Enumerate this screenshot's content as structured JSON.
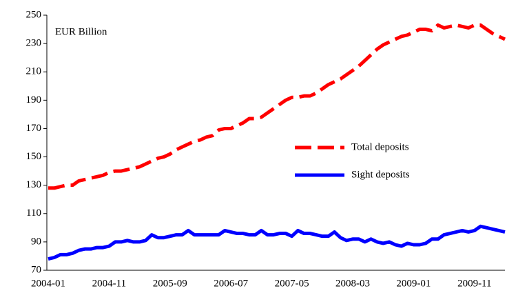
{
  "chart_data": {
    "type": "line",
    "annotation": "EUR Billion",
    "categories": [
      "2004-01",
      null,
      null,
      null,
      null,
      null,
      null,
      null,
      null,
      null,
      "2004-11",
      null,
      null,
      null,
      null,
      null,
      null,
      null,
      null,
      null,
      "2005-09",
      null,
      null,
      null,
      null,
      null,
      null,
      null,
      null,
      null,
      "2006-07",
      null,
      null,
      null,
      null,
      null,
      null,
      null,
      null,
      null,
      "2007-05",
      null,
      null,
      null,
      null,
      null,
      null,
      null,
      null,
      null,
      "2008-03",
      null,
      null,
      null,
      null,
      null,
      null,
      null,
      null,
      null,
      "2009-01",
      null,
      null,
      null,
      null,
      null,
      null,
      null,
      null,
      null,
      "2009-11",
      null,
      null,
      null,
      null,
      null
    ],
    "series": [
      {
        "name": "Total deposits",
        "color": "#ff0000",
        "dashed": true,
        "values": [
          128,
          128,
          129,
          130,
          130,
          133,
          134,
          135,
          136,
          137,
          139,
          140,
          140,
          141,
          142,
          143,
          145,
          147,
          149,
          150,
          152,
          155,
          157,
          159,
          161,
          162,
          164,
          165,
          169,
          170,
          170,
          172,
          174,
          177,
          177,
          178,
          181,
          184,
          187,
          190,
          192,
          192,
          193,
          193,
          195,
          198,
          201,
          203,
          205,
          208,
          211,
          214,
          218,
          222,
          226,
          229,
          231,
          233,
          235,
          236,
          238,
          240,
          240,
          239,
          243,
          241,
          242,
          243,
          242,
          241,
          243,
          243,
          240,
          237,
          235,
          233
        ]
      },
      {
        "name": "Sight deposits",
        "color": "#0000ff",
        "dashed": false,
        "values": [
          78,
          79,
          81,
          81,
          82,
          84,
          85,
          85,
          86,
          86,
          87,
          90,
          90,
          91,
          90,
          90,
          91,
          95,
          93,
          93,
          94,
          95,
          95,
          98,
          95,
          95,
          95,
          95,
          95,
          98,
          97,
          96,
          96,
          95,
          95,
          98,
          95,
          95,
          96,
          96,
          94,
          98,
          96,
          96,
          95,
          94,
          94,
          97,
          93,
          91,
          92,
          92,
          90,
          92,
          90,
          89,
          90,
          88,
          87,
          89,
          88,
          88,
          89,
          92,
          92,
          95,
          96,
          97,
          98,
          97,
          98,
          101,
          100,
          99,
          98,
          97
        ]
      }
    ],
    "ylim": [
      70,
      250
    ],
    "yticks": [
      70,
      90,
      110,
      130,
      150,
      170,
      190,
      210,
      230,
      250
    ]
  }
}
